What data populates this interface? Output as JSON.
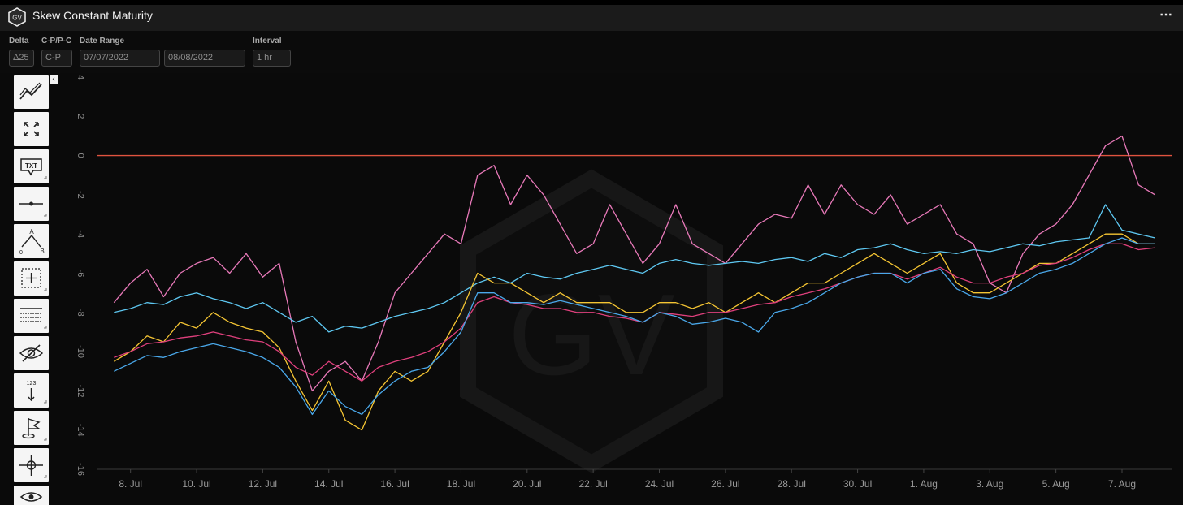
{
  "header": {
    "title": "Skew Constant Maturity",
    "logo_text": "GV",
    "menu_icon": "more-dots-icon"
  },
  "controls": {
    "delta": {
      "label": "Delta",
      "value": "Δ25"
    },
    "cpc": {
      "label": "C-P/P-C",
      "value": "C-P"
    },
    "date_range": {
      "label": "Date Range",
      "start": "07/07/2022",
      "end": "08/08/2022"
    },
    "interval": {
      "label": "Interval",
      "value": "1 hr"
    }
  },
  "toolbar": [
    {
      "icon": "trend-line-icon",
      "text": ""
    },
    {
      "icon": "expand-arrows-icon",
      "text": ""
    },
    {
      "icon": "text-annotation-icon",
      "text": "TXT"
    },
    {
      "icon": "horizontal-line-icon",
      "text": ""
    },
    {
      "icon": "ab-path-icon",
      "text": "A B 0"
    },
    {
      "icon": "select-box-icon",
      "text": ""
    },
    {
      "icon": "grid-table-icon",
      "text": ""
    },
    {
      "icon": "eye-off-icon",
      "text": ""
    },
    {
      "icon": "value-label-icon",
      "text": "123"
    },
    {
      "icon": "flag-icon",
      "text": ""
    },
    {
      "icon": "crosshair-icon",
      "text": ""
    },
    {
      "icon": "eye-icon",
      "text": ""
    }
  ],
  "watermark": "GV",
  "chart_data": {
    "type": "line",
    "title": "Skew Constant Maturity",
    "xlabel": "",
    "ylabel": "",
    "ylim": [
      -16,
      4
    ],
    "yticks": [
      4,
      2,
      0,
      -2,
      -4,
      -6,
      -8,
      -10,
      -12,
      -14,
      -16
    ],
    "xlim": [
      "2022-07-07T00:00",
      "2022-08-08T12:00"
    ],
    "xticks": [
      {
        "date": "2022-07-08",
        "label": "8. Jul"
      },
      {
        "date": "2022-07-10",
        "label": "10. Jul"
      },
      {
        "date": "2022-07-12",
        "label": "12. Jul"
      },
      {
        "date": "2022-07-14",
        "label": "14. Jul"
      },
      {
        "date": "2022-07-16",
        "label": "16. Jul"
      },
      {
        "date": "2022-07-18",
        "label": "18. Jul"
      },
      {
        "date": "2022-07-20",
        "label": "20. Jul"
      },
      {
        "date": "2022-07-22",
        "label": "22. Jul"
      },
      {
        "date": "2022-07-24",
        "label": "24. Jul"
      },
      {
        "date": "2022-07-26",
        "label": "26. Jul"
      },
      {
        "date": "2022-07-28",
        "label": "28. Jul"
      },
      {
        "date": "2022-07-30",
        "label": "30. Jul"
      },
      {
        "date": "2022-08-01",
        "label": "1. Aug"
      },
      {
        "date": "2022-08-03",
        "label": "3. Aug"
      },
      {
        "date": "2022-08-05",
        "label": "5. Aug"
      },
      {
        "date": "2022-08-07",
        "label": "7. Aug"
      }
    ],
    "reference_line": {
      "y": 0,
      "color": "#e0533f"
    },
    "series": [
      {
        "color": "#e879b9",
        "x": [
          "2022-07-07T12:00",
          "2022-07-08T00:00",
          "2022-07-08T12:00",
          "2022-07-09T00:00",
          "2022-07-09T12:00",
          "2022-07-10T00:00",
          "2022-07-10T12:00",
          "2022-07-11T00:00",
          "2022-07-11T12:00",
          "2022-07-12T00:00",
          "2022-07-12T12:00",
          "2022-07-13T00:00",
          "2022-07-13T12:00",
          "2022-07-14T00:00",
          "2022-07-14T12:00",
          "2022-07-15T00:00",
          "2022-07-15T12:00",
          "2022-07-16T00:00",
          "2022-07-16T12:00",
          "2022-07-17T00:00",
          "2022-07-17T12:00",
          "2022-07-18T00:00",
          "2022-07-18T12:00",
          "2022-07-19T00:00",
          "2022-07-19T12:00",
          "2022-07-20T00:00",
          "2022-07-20T12:00",
          "2022-07-21T00:00",
          "2022-07-21T12:00",
          "2022-07-22T00:00",
          "2022-07-22T12:00",
          "2022-07-23T00:00",
          "2022-07-23T12:00",
          "2022-07-24T00:00",
          "2022-07-24T12:00",
          "2022-07-25T00:00",
          "2022-07-25T12:00",
          "2022-07-26T00:00",
          "2022-07-26T12:00",
          "2022-07-27T00:00",
          "2022-07-27T12:00",
          "2022-07-28T00:00",
          "2022-07-28T12:00",
          "2022-07-29T00:00",
          "2022-07-29T12:00",
          "2022-07-30T00:00",
          "2022-07-30T12:00",
          "2022-07-31T00:00",
          "2022-07-31T12:00",
          "2022-08-01T00:00",
          "2022-08-01T12:00",
          "2022-08-02T00:00",
          "2022-08-02T12:00",
          "2022-08-03T00:00",
          "2022-08-03T12:00",
          "2022-08-04T00:00",
          "2022-08-04T12:00",
          "2022-08-05T00:00",
          "2022-08-05T12:00",
          "2022-08-06T00:00",
          "2022-08-06T12:00",
          "2022-08-07T00:00",
          "2022-08-07T12:00",
          "2022-08-08T00:00"
        ],
        "values": [
          -7.5,
          -6.5,
          -5.8,
          -7.2,
          -6.0,
          -5.5,
          -5.2,
          -6.0,
          -5.0,
          -6.2,
          -5.5,
          -9.5,
          -12.0,
          -11.0,
          -10.5,
          -11.5,
          -9.5,
          -7.0,
          -6.0,
          -5.0,
          -4.0,
          -4.5,
          -1.0,
          -0.5,
          -2.5,
          -1.0,
          -2.0,
          -3.5,
          -5.0,
          -4.5,
          -2.5,
          -4.0,
          -5.5,
          -4.5,
          -2.5,
          -4.5,
          -5.0,
          -5.5,
          -4.5,
          -3.5,
          -3.0,
          -3.2,
          -1.5,
          -3.0,
          -1.5,
          -2.5,
          -3.0,
          -2.0,
          -3.5,
          -3.0,
          -2.5,
          -4.0,
          -4.5,
          -6.5,
          -7.0,
          -5.0,
          -4.0,
          -3.5,
          -2.5,
          -1.0,
          0.5,
          1.0,
          -1.5,
          -2.0
        ]
      },
      {
        "color": "#5ec8f2",
        "x": [
          "2022-07-07T12:00",
          "2022-07-08T00:00",
          "2022-07-08T12:00",
          "2022-07-09T00:00",
          "2022-07-09T12:00",
          "2022-07-10T00:00",
          "2022-07-10T12:00",
          "2022-07-11T00:00",
          "2022-07-11T12:00",
          "2022-07-12T00:00",
          "2022-07-12T12:00",
          "2022-07-13T00:00",
          "2022-07-13T12:00",
          "2022-07-14T00:00",
          "2022-07-14T12:00",
          "2022-07-15T00:00",
          "2022-07-15T12:00",
          "2022-07-16T00:00",
          "2022-07-16T12:00",
          "2022-07-17T00:00",
          "2022-07-17T12:00",
          "2022-07-18T00:00",
          "2022-07-18T12:00",
          "2022-07-19T00:00",
          "2022-07-19T12:00",
          "2022-07-20T00:00",
          "2022-07-20T12:00",
          "2022-07-21T00:00",
          "2022-07-21T12:00",
          "2022-07-22T00:00",
          "2022-07-22T12:00",
          "2022-07-23T00:00",
          "2022-07-23T12:00",
          "2022-07-24T00:00",
          "2022-07-24T12:00",
          "2022-07-25T00:00",
          "2022-07-25T12:00",
          "2022-07-26T00:00",
          "2022-07-26T12:00",
          "2022-07-27T00:00",
          "2022-07-27T12:00",
          "2022-07-28T00:00",
          "2022-07-28T12:00",
          "2022-07-29T00:00",
          "2022-07-29T12:00",
          "2022-07-30T00:00",
          "2022-07-30T12:00",
          "2022-07-31T00:00",
          "2022-07-31T12:00",
          "2022-08-01T00:00",
          "2022-08-01T12:00",
          "2022-08-02T00:00",
          "2022-08-02T12:00",
          "2022-08-03T00:00",
          "2022-08-03T12:00",
          "2022-08-04T00:00",
          "2022-08-04T12:00",
          "2022-08-05T00:00",
          "2022-08-05T12:00",
          "2022-08-06T00:00",
          "2022-08-06T12:00",
          "2022-08-07T00:00",
          "2022-08-07T12:00",
          "2022-08-08T00:00"
        ],
        "values": [
          -8.0,
          -7.8,
          -7.5,
          -7.6,
          -7.2,
          -7.0,
          -7.3,
          -7.5,
          -7.8,
          -7.5,
          -8.0,
          -8.5,
          -8.2,
          -9.0,
          -8.7,
          -8.8,
          -8.5,
          -8.2,
          -8.0,
          -7.8,
          -7.5,
          -7.0,
          -6.5,
          -6.2,
          -6.5,
          -6.0,
          -6.2,
          -6.3,
          -6.0,
          -5.8,
          -5.6,
          -5.8,
          -6.0,
          -5.5,
          -5.3,
          -5.5,
          -5.6,
          -5.5,
          -5.4,
          -5.5,
          -5.3,
          -5.2,
          -5.4,
          -5.0,
          -5.2,
          -4.8,
          -4.7,
          -4.5,
          -4.8,
          -5.0,
          -4.9,
          -5.0,
          -4.8,
          -4.9,
          -4.7,
          -4.5,
          -4.6,
          -4.4,
          -4.3,
          -4.2,
          -2.5,
          -3.8,
          -4.0,
          -4.2
        ]
      },
      {
        "color": "#f5c533",
        "x": [
          "2022-07-07T12:00",
          "2022-07-08T00:00",
          "2022-07-08T12:00",
          "2022-07-09T00:00",
          "2022-07-09T12:00",
          "2022-07-10T00:00",
          "2022-07-10T12:00",
          "2022-07-11T00:00",
          "2022-07-11T12:00",
          "2022-07-12T00:00",
          "2022-07-12T12:00",
          "2022-07-13T00:00",
          "2022-07-13T12:00",
          "2022-07-14T00:00",
          "2022-07-14T12:00",
          "2022-07-15T00:00",
          "2022-07-15T12:00",
          "2022-07-16T00:00",
          "2022-07-16T12:00",
          "2022-07-17T00:00",
          "2022-07-17T12:00",
          "2022-07-18T00:00",
          "2022-07-18T12:00",
          "2022-07-19T00:00",
          "2022-07-19T12:00",
          "2022-07-20T00:00",
          "2022-07-20T12:00",
          "2022-07-21T00:00",
          "2022-07-21T12:00",
          "2022-07-22T00:00",
          "2022-07-22T12:00",
          "2022-07-23T00:00",
          "2022-07-23T12:00",
          "2022-07-24T00:00",
          "2022-07-24T12:00",
          "2022-07-25T00:00",
          "2022-07-25T12:00",
          "2022-07-26T00:00",
          "2022-07-26T12:00",
          "2022-07-27T00:00",
          "2022-07-27T12:00",
          "2022-07-28T00:00",
          "2022-07-28T12:00",
          "2022-07-29T00:00",
          "2022-07-29T12:00",
          "2022-07-30T00:00",
          "2022-07-30T12:00",
          "2022-07-31T00:00",
          "2022-07-31T12:00",
          "2022-08-01T00:00",
          "2022-08-01T12:00",
          "2022-08-02T00:00",
          "2022-08-02T12:00",
          "2022-08-03T00:00",
          "2022-08-03T12:00",
          "2022-08-04T00:00",
          "2022-08-04T12:00",
          "2022-08-05T00:00",
          "2022-08-05T12:00",
          "2022-08-06T00:00",
          "2022-08-06T12:00",
          "2022-08-07T00:00",
          "2022-08-07T12:00",
          "2022-08-08T00:00"
        ],
        "values": [
          -10.5,
          -10.0,
          -9.2,
          -9.5,
          -8.5,
          -8.8,
          -8.0,
          -8.5,
          -8.8,
          -9.0,
          -9.8,
          -11.5,
          -13.0,
          -11.5,
          -13.5,
          -14.0,
          -12.0,
          -11.0,
          -11.5,
          -11.0,
          -9.5,
          -8.0,
          -6.0,
          -6.5,
          -6.5,
          -7.0,
          -7.5,
          -7.0,
          -7.5,
          -7.5,
          -7.5,
          -8.0,
          -8.0,
          -7.5,
          -7.5,
          -7.8,
          -7.5,
          -8.0,
          -7.5,
          -7.0,
          -7.5,
          -7.0,
          -6.5,
          -6.5,
          -6.0,
          -5.5,
          -5.0,
          -5.5,
          -6.0,
          -5.5,
          -5.0,
          -6.5,
          -7.0,
          -7.0,
          -6.5,
          -6.0,
          -5.5,
          -5.5,
          -5.0,
          -4.5,
          -4.0,
          -4.0,
          -4.5,
          -4.5
        ]
      },
      {
        "color": "#e0407d",
        "x": [
          "2022-07-07T12:00",
          "2022-07-08T00:00",
          "2022-07-08T12:00",
          "2022-07-09T00:00",
          "2022-07-09T12:00",
          "2022-07-10T00:00",
          "2022-07-10T12:00",
          "2022-07-11T00:00",
          "2022-07-11T12:00",
          "2022-07-12T00:00",
          "2022-07-12T12:00",
          "2022-07-13T00:00",
          "2022-07-13T12:00",
          "2022-07-14T00:00",
          "2022-07-14T12:00",
          "2022-07-15T00:00",
          "2022-07-15T12:00",
          "2022-07-16T00:00",
          "2022-07-16T12:00",
          "2022-07-17T00:00",
          "2022-07-17T12:00",
          "2022-07-18T00:00",
          "2022-07-18T12:00",
          "2022-07-19T00:00",
          "2022-07-19T12:00",
          "2022-07-20T00:00",
          "2022-07-20T12:00",
          "2022-07-21T00:00",
          "2022-07-21T12:00",
          "2022-07-22T00:00",
          "2022-07-22T12:00",
          "2022-07-23T00:00",
          "2022-07-23T12:00",
          "2022-07-24T00:00",
          "2022-07-24T12:00",
          "2022-07-25T00:00",
          "2022-07-25T12:00",
          "2022-07-26T00:00",
          "2022-07-26T12:00",
          "2022-07-27T00:00",
          "2022-07-27T12:00",
          "2022-07-28T00:00",
          "2022-07-28T12:00",
          "2022-07-29T00:00",
          "2022-07-29T12:00",
          "2022-07-30T00:00",
          "2022-07-30T12:00",
          "2022-07-31T00:00",
          "2022-07-31T12:00",
          "2022-08-01T00:00",
          "2022-08-01T12:00",
          "2022-08-02T00:00",
          "2022-08-02T12:00",
          "2022-08-03T00:00",
          "2022-08-03T12:00",
          "2022-08-04T00:00",
          "2022-08-04T12:00",
          "2022-08-05T00:00",
          "2022-08-05T12:00",
          "2022-08-06T00:00",
          "2022-08-06T12:00",
          "2022-08-07T00:00",
          "2022-08-07T12:00",
          "2022-08-08T00:00"
        ],
        "values": [
          -10.3,
          -10.0,
          -9.6,
          -9.5,
          -9.3,
          -9.2,
          -9.0,
          -9.2,
          -9.4,
          -9.5,
          -10.0,
          -10.8,
          -11.2,
          -10.5,
          -11.0,
          -11.5,
          -10.8,
          -10.5,
          -10.3,
          -10.0,
          -9.5,
          -8.8,
          -7.5,
          -7.2,
          -7.5,
          -7.6,
          -7.8,
          -7.8,
          -8.0,
          -8.0,
          -8.2,
          -8.3,
          -8.5,
          -8.0,
          -8.1,
          -8.2,
          -8.0,
          -8.0,
          -7.8,
          -7.6,
          -7.5,
          -7.2,
          -7.0,
          -6.8,
          -6.5,
          -6.2,
          -6.0,
          -6.0,
          -6.3,
          -6.0,
          -5.7,
          -6.2,
          -6.5,
          -6.5,
          -6.2,
          -6.0,
          -5.6,
          -5.5,
          -5.2,
          -4.8,
          -4.5,
          -4.5,
          -4.8,
          -4.7
        ]
      },
      {
        "color": "#4aa8ea",
        "x": [
          "2022-07-07T12:00",
          "2022-07-08T00:00",
          "2022-07-08T12:00",
          "2022-07-09T00:00",
          "2022-07-09T12:00",
          "2022-07-10T00:00",
          "2022-07-10T12:00",
          "2022-07-11T00:00",
          "2022-07-11T12:00",
          "2022-07-12T00:00",
          "2022-07-12T12:00",
          "2022-07-13T00:00",
          "2022-07-13T12:00",
          "2022-07-14T00:00",
          "2022-07-14T12:00",
          "2022-07-15T00:00",
          "2022-07-15T12:00",
          "2022-07-16T00:00",
          "2022-07-16T12:00",
          "2022-07-17T00:00",
          "2022-07-17T12:00",
          "2022-07-18T00:00",
          "2022-07-18T12:00",
          "2022-07-19T00:00",
          "2022-07-19T12:00",
          "2022-07-20T00:00",
          "2022-07-20T12:00",
          "2022-07-21T00:00",
          "2022-07-21T12:00",
          "2022-07-22T00:00",
          "2022-07-22T12:00",
          "2022-07-23T00:00",
          "2022-07-23T12:00",
          "2022-07-24T00:00",
          "2022-07-24T12:00",
          "2022-07-25T00:00",
          "2022-07-25T12:00",
          "2022-07-26T00:00",
          "2022-07-26T12:00",
          "2022-07-27T00:00",
          "2022-07-27T12:00",
          "2022-07-28T00:00",
          "2022-07-28T12:00",
          "2022-07-29T00:00",
          "2022-07-29T12:00",
          "2022-07-30T00:00",
          "2022-07-30T12:00",
          "2022-07-31T00:00",
          "2022-07-31T12:00",
          "2022-08-01T00:00",
          "2022-08-01T12:00",
          "2022-08-02T00:00",
          "2022-08-02T12:00",
          "2022-08-03T00:00",
          "2022-08-03T12:00",
          "2022-08-04T00:00",
          "2022-08-04T12:00",
          "2022-08-05T00:00",
          "2022-08-05T12:00",
          "2022-08-06T00:00",
          "2022-08-06T12:00",
          "2022-08-07T00:00",
          "2022-08-07T12:00",
          "2022-08-08T00:00"
        ],
        "values": [
          -11.0,
          -10.6,
          -10.2,
          -10.3,
          -10.0,
          -9.8,
          -9.6,
          -9.8,
          -10.0,
          -10.3,
          -10.8,
          -11.8,
          -13.2,
          -12.0,
          -12.8,
          -13.2,
          -12.2,
          -11.5,
          -11.0,
          -10.8,
          -10.0,
          -9.0,
          -7.0,
          -7.0,
          -7.5,
          -7.5,
          -7.6,
          -7.4,
          -7.6,
          -7.8,
          -8.0,
          -8.2,
          -8.5,
          -8.0,
          -8.2,
          -8.6,
          -8.5,
          -8.3,
          -8.5,
          -9.0,
          -8.0,
          -7.8,
          -7.5,
          -7.0,
          -6.5,
          -6.2,
          -6.0,
          -6.0,
          -6.5,
          -6.0,
          -5.8,
          -6.8,
          -7.2,
          -7.3,
          -7.0,
          -6.5,
          -6.0,
          -5.8,
          -5.5,
          -5.0,
          -4.5,
          -4.2,
          -4.5,
          -4.5
        ]
      }
    ]
  }
}
